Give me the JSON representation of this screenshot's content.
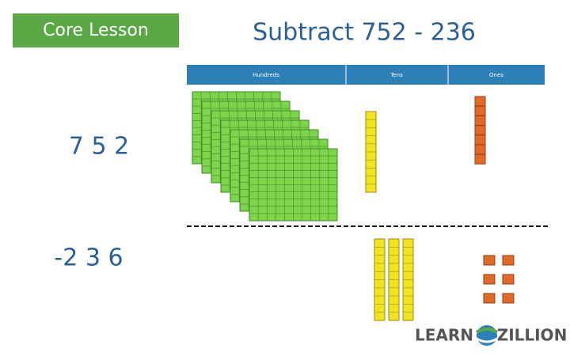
{
  "header": {
    "badge": "Core Lesson",
    "title": "Subtract 752 - 236"
  },
  "table": {
    "columns": [
      "Hundreds",
      "Tens",
      "Ones"
    ]
  },
  "rows": [
    "7 5 2",
    "-2 3 6"
  ],
  "logo": {
    "left": "LEARN",
    "right": "ZILLION"
  }
}
